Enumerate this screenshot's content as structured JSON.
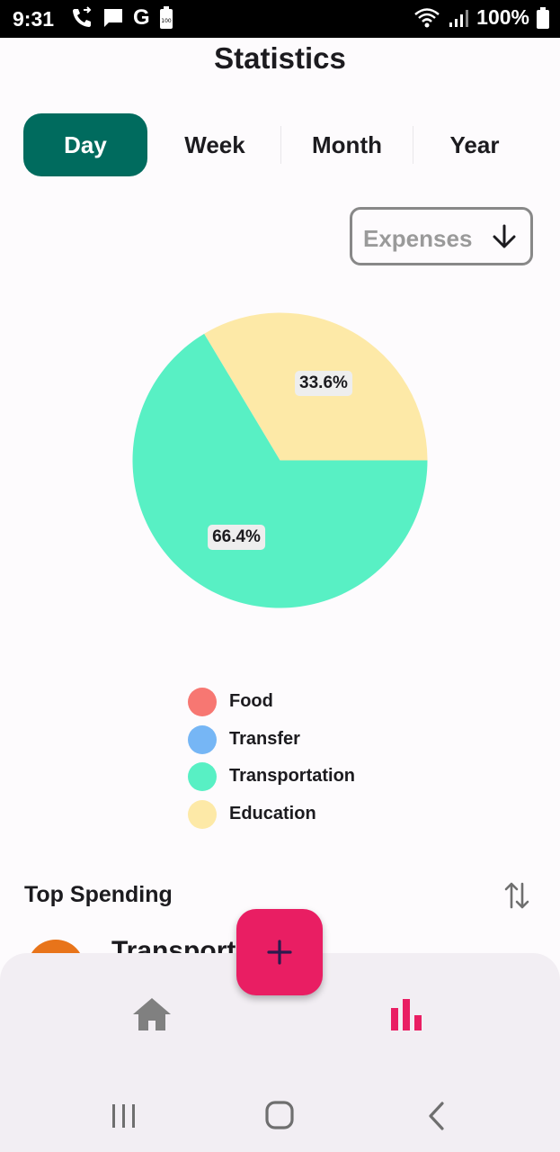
{
  "status_bar": {
    "time": "9:31",
    "carrier_letter": "G",
    "battery_small": "100",
    "battery_pct": "100%"
  },
  "page": {
    "title": "Statistics"
  },
  "tabs": [
    {
      "label": "Day",
      "active": true
    },
    {
      "label": "Week",
      "active": false
    },
    {
      "label": "Month",
      "active": false
    },
    {
      "label": "Year",
      "active": false
    }
  ],
  "filter": {
    "selected": "Expenses",
    "icon": "arrow-down-icon"
  },
  "chart_data": {
    "type": "pie",
    "slices": [
      {
        "name": "Education",
        "value": 33.6,
        "label": "33.6%",
        "color": "#fde9a7"
      },
      {
        "name": "Transportation",
        "value": 66.4,
        "label": "66.4%",
        "color": "#58f0c4"
      }
    ],
    "legend": [
      {
        "name": "Food",
        "color": "#f77772"
      },
      {
        "name": "Transfer",
        "color": "#76b6f5"
      },
      {
        "name": "Transportation",
        "color": "#58f0c4"
      },
      {
        "name": "Education",
        "color": "#fde9a7"
      }
    ],
    "legend_position": "bottom"
  },
  "top_spending": {
    "title": "Top Spending",
    "first_item_partial": "Transport"
  },
  "bottom_nav": {
    "fab_icon": "plus-icon",
    "home_icon": "home-icon",
    "stats_icon": "bar-chart-icon"
  },
  "colors": {
    "primary": "#006b5e",
    "accent": "#e91e63",
    "nav_bg": "#f2eef3"
  }
}
